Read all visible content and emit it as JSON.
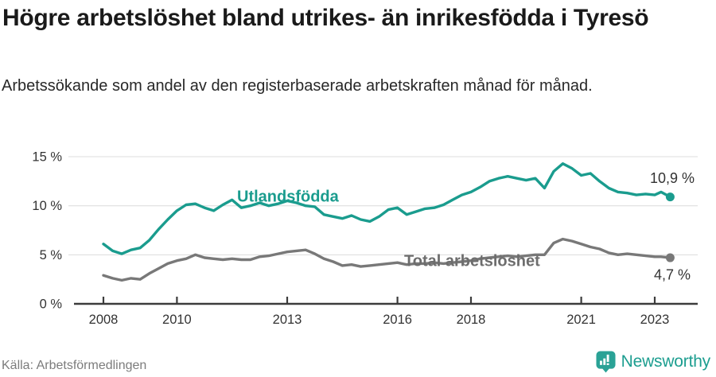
{
  "header": {
    "title": "Högre arbetslöshet bland utrikes- än inrikesfödda i Tyresö",
    "subtitle": "Arbetssökande som andel av den registerbaserade arbetskraften månad för månad."
  },
  "footer": {
    "source": "Källa: Arbetsförmedlingen",
    "brand": "Newsworthy"
  },
  "colors": {
    "accent_teal": "#1a9c8e",
    "line_gray": "#787878",
    "axis": "#3c3c3c",
    "grid": "#dcdcdc",
    "annotation": "#333333",
    "brand_teal": "#1d9e90"
  },
  "chart_data": {
    "type": "line",
    "title": "Högre arbetslöshet bland utrikes- än inrikesfödda i Tyresö",
    "subtitle": "Arbetssökande som andel av den registerbaserade arbetskraften månad för månad.",
    "xlabel": "",
    "ylabel": "%",
    "xlim": [
      2007.2,
      2023.9
    ],
    "ylim": [
      0,
      15.8
    ],
    "grid": true,
    "legend_position": "inline-labels",
    "xticks": [
      2008,
      2010,
      2013,
      2016,
      2018,
      2021,
      2023
    ],
    "xtick_labels": [
      "2008",
      "2010",
      "2013",
      "2016",
      "2018",
      "2021",
      "2023"
    ],
    "yticks": [
      0,
      5,
      10,
      15
    ],
    "ytick_labels": [
      "0 %",
      "5 %",
      "10 %",
      "15 %"
    ],
    "x": [
      2008,
      2008.25,
      2008.5,
      2008.75,
      2009,
      2009.25,
      2009.5,
      2009.75,
      2010,
      2010.25,
      2010.5,
      2010.75,
      2011,
      2011.25,
      2011.5,
      2011.75,
      2012,
      2012.25,
      2012.5,
      2012.75,
      2013,
      2013.25,
      2013.5,
      2013.75,
      2014,
      2014.25,
      2014.5,
      2014.75,
      2015,
      2015.25,
      2015.5,
      2015.75,
      2016,
      2016.25,
      2016.5,
      2016.75,
      2017,
      2017.25,
      2017.5,
      2017.75,
      2018,
      2018.25,
      2018.5,
      2018.75,
      2019,
      2019.25,
      2019.5,
      2019.75,
      2020,
      2020.25,
      2020.5,
      2020.75,
      2021,
      2021.25,
      2021.5,
      2021.75,
      2022,
      2022.25,
      2022.5,
      2022.75,
      2023,
      2023.17,
      2023.42
    ],
    "series": [
      {
        "name": "Utlandsfödda",
        "color": "#1a9c8e",
        "label_color": "#1a9c8e",
        "end_label": "10,9 %",
        "final_value": 10.9,
        "values": [
          6.1,
          5.4,
          5.1,
          5.5,
          5.7,
          6.5,
          7.6,
          8.6,
          9.5,
          10.1,
          10.2,
          9.8,
          9.5,
          10.1,
          10.6,
          9.8,
          10.0,
          10.3,
          10.0,
          10.2,
          10.5,
          10.3,
          10.0,
          9.9,
          9.1,
          8.9,
          8.7,
          9.0,
          8.6,
          8.4,
          8.9,
          9.6,
          9.8,
          9.1,
          9.4,
          9.7,
          9.8,
          10.1,
          10.6,
          11.1,
          11.4,
          11.9,
          12.5,
          12.8,
          13.0,
          12.8,
          12.6,
          12.8,
          11.8,
          13.5,
          14.3,
          13.8,
          13.1,
          13.3,
          12.5,
          11.8,
          11.4,
          11.3,
          11.1,
          11.2,
          11.1,
          11.4,
          10.9
        ]
      },
      {
        "name": "Total arbetslöshet",
        "color": "#787878",
        "label_color": "#6d6d6d",
        "end_label": "4,7 %",
        "final_value": 4.7,
        "values": [
          2.9,
          2.6,
          2.4,
          2.6,
          2.5,
          3.1,
          3.6,
          4.1,
          4.4,
          4.6,
          5.0,
          4.7,
          4.6,
          4.5,
          4.6,
          4.5,
          4.5,
          4.8,
          4.9,
          5.1,
          5.3,
          5.4,
          5.5,
          5.1,
          4.6,
          4.3,
          3.9,
          4.0,
          3.8,
          3.9,
          4.0,
          4.1,
          4.2,
          4.0,
          4.1,
          4.1,
          4.2,
          4.1,
          4.2,
          4.3,
          4.4,
          4.6,
          4.7,
          4.8,
          4.9,
          4.8,
          4.9,
          5.0,
          5.0,
          6.2,
          6.6,
          6.4,
          6.1,
          5.8,
          5.6,
          5.2,
          5.0,
          5.1,
          5.0,
          4.9,
          4.8,
          4.8,
          4.7
        ]
      }
    ]
  }
}
